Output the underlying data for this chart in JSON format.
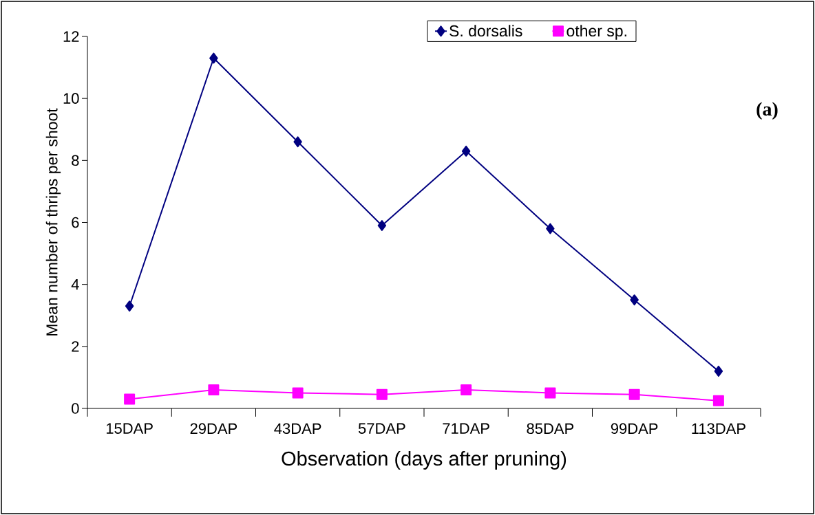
{
  "chart_data": {
    "type": "line",
    "xlabel": "Observation (days after pruning)",
    "ylabel": "Mean number of thrips per shoot",
    "categories": [
      "15DAP",
      "29DAP",
      "43DAP",
      "57DAP",
      "71DAP",
      "85DAP",
      "99DAP",
      "113DAP"
    ],
    "series": [
      {
        "name": "S. dorsalis",
        "color": "#000080",
        "marker": "diamond",
        "values": [
          3.3,
          11.3,
          8.6,
          5.9,
          8.3,
          5.8,
          3.5,
          1.2
        ]
      },
      {
        "name": "other sp.",
        "color": "#ff00ff",
        "marker": "square",
        "values": [
          0.3,
          0.6,
          0.5,
          0.45,
          0.6,
          0.5,
          0.45,
          0.25
        ]
      }
    ],
    "ylim": [
      0,
      12
    ],
    "yticks": [
      0,
      2,
      4,
      6,
      8,
      10,
      12
    ],
    "grid": false,
    "legend": "top",
    "line_style": "solid",
    "annotations": [
      "(a)"
    ]
  }
}
